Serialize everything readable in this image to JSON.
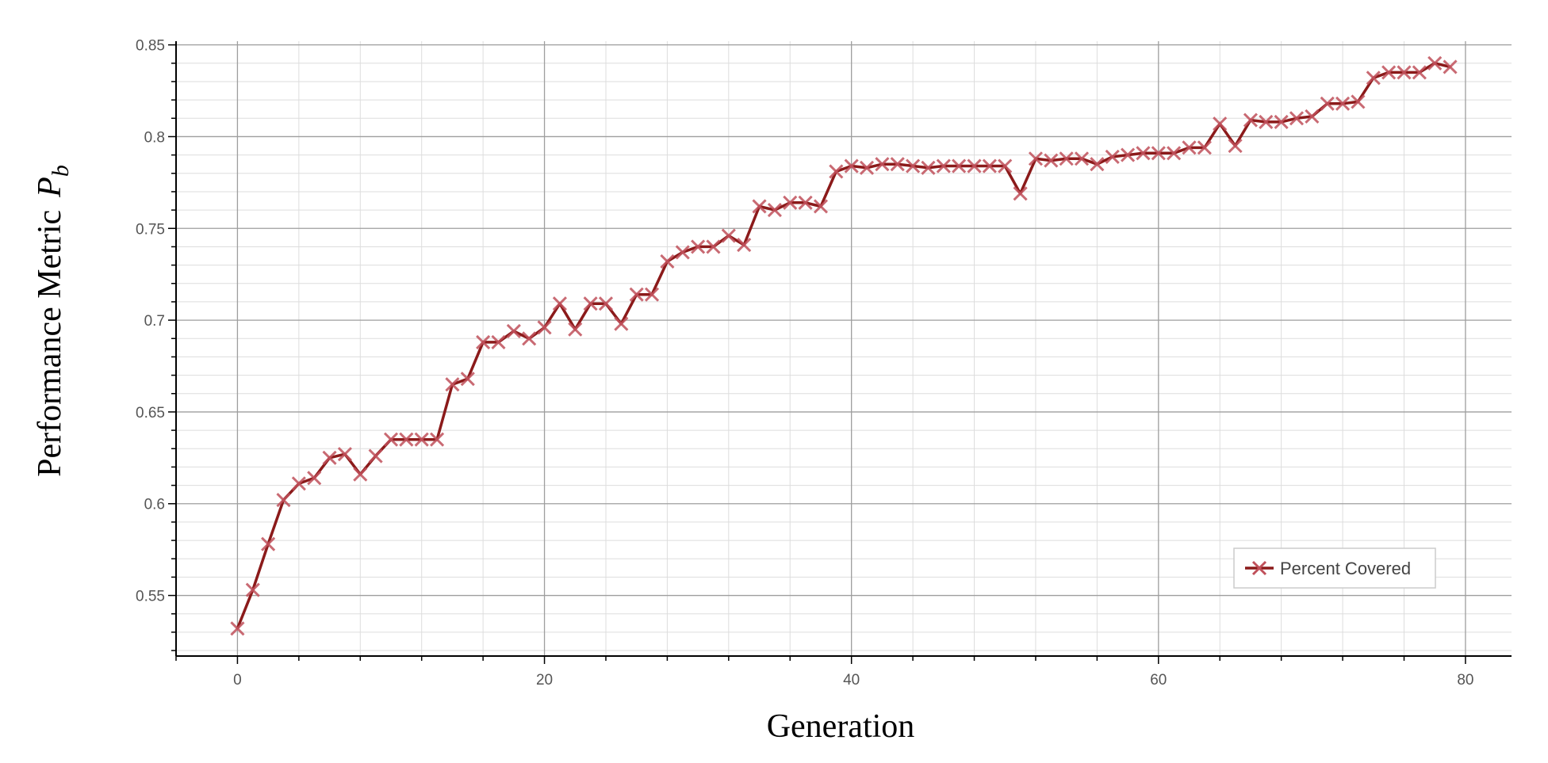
{
  "chart_data": {
    "type": "line",
    "xlabel": "Generation",
    "ylabel": "Performance Metric",
    "ylabel_symbol": "P",
    "ylabel_subscript": "b",
    "xlim": [
      -4,
      83
    ],
    "ylim": [
      0.517,
      0.852
    ],
    "xticks": [
      0,
      20,
      40,
      60,
      80
    ],
    "xtick_labels": [
      "0",
      "20",
      "40",
      "60",
      "80"
    ],
    "yticks": [
      0.55,
      0.6,
      0.65,
      0.7,
      0.75,
      0.8,
      0.85
    ],
    "ytick_labels": [
      "0.55",
      "0.6",
      "0.65",
      "0.7",
      "0.75",
      "0.8",
      "0.85"
    ],
    "grid": true,
    "legend_position": "bottom-right",
    "colors": {
      "series": "#8b1a1a",
      "marker": "#c0505a",
      "grid_major": "#9e9e9e",
      "grid_minor": "#dddddd",
      "axis": "#000000"
    },
    "series": [
      {
        "name": "Percent Covered",
        "marker": "x",
        "x": [
          0,
          1,
          2,
          3,
          4,
          5,
          6,
          7,
          8,
          9,
          10,
          11,
          12,
          13,
          14,
          15,
          16,
          17,
          18,
          19,
          20,
          21,
          22,
          23,
          24,
          25,
          26,
          27,
          28,
          29,
          30,
          31,
          32,
          33,
          34,
          35,
          36,
          37,
          38,
          39,
          40,
          41,
          42,
          43,
          44,
          45,
          46,
          47,
          48,
          49,
          50,
          51,
          52,
          53,
          54,
          55,
          56,
          57,
          58,
          59,
          60,
          61,
          62,
          63,
          64,
          65,
          66,
          67,
          68,
          69,
          70,
          71,
          72,
          73,
          74,
          75,
          76,
          77,
          78,
          79
        ],
        "y": [
          0.532,
          0.553,
          0.578,
          0.602,
          0.611,
          0.614,
          0.625,
          0.627,
          0.616,
          0.626,
          0.635,
          0.635,
          0.635,
          0.635,
          0.665,
          0.668,
          0.688,
          0.688,
          0.694,
          0.69,
          0.696,
          0.709,
          0.695,
          0.709,
          0.709,
          0.698,
          0.714,
          0.714,
          0.732,
          0.737,
          0.74,
          0.74,
          0.746,
          0.741,
          0.762,
          0.76,
          0.764,
          0.764,
          0.762,
          0.781,
          0.784,
          0.783,
          0.785,
          0.785,
          0.784,
          0.783,
          0.784,
          0.784,
          0.784,
          0.784,
          0.784,
          0.769,
          0.788,
          0.787,
          0.788,
          0.788,
          0.785,
          0.789,
          0.79,
          0.791,
          0.791,
          0.791,
          0.794,
          0.794,
          0.807,
          0.795,
          0.809,
          0.808,
          0.808,
          0.81,
          0.811,
          0.818,
          0.818,
          0.819,
          0.832,
          0.835,
          0.835,
          0.835,
          0.84,
          0.838
        ]
      }
    ]
  }
}
